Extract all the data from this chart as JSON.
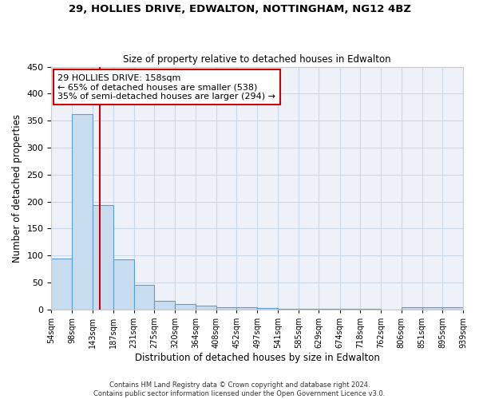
{
  "title1": "29, HOLLIES DRIVE, EDWALTON, NOTTINGHAM, NG12 4BZ",
  "title2": "Size of property relative to detached houses in Edwalton",
  "xlabel": "Distribution of detached houses by size in Edwalton",
  "ylabel": "Number of detached properties",
  "footer1": "Contains HM Land Registry data © Crown copyright and database right 2024.",
  "footer2": "Contains public sector information licensed under the Open Government Licence v3.0.",
  "bin_edges": [
    54,
    98,
    143,
    187,
    231,
    275,
    320,
    364,
    408,
    452,
    497,
    541,
    585,
    629,
    674,
    718,
    762,
    806,
    851,
    895,
    939
  ],
  "bar_heights": [
    95,
    362,
    193,
    93,
    45,
    16,
    10,
    7,
    5,
    5,
    3,
    2,
    1,
    2,
    1,
    1,
    0,
    5,
    4,
    5
  ],
  "bar_color": "#c8dcf0",
  "bar_edgecolor": "#5a9fd4",
  "grid_color": "#c8d8e8",
  "annotation_text": "29 HOLLIES DRIVE: 158sqm\n← 65% of detached houses are smaller (538)\n35% of semi-detached houses are larger (294) →",
  "vline_x": 158,
  "vline_color": "#cc0000",
  "annotation_box_color": "#cc0000",
  "annotation_fontsize": 8,
  "bg_color": "#eef2f8",
  "ylim": [
    0,
    450
  ],
  "yticks": [
    0,
    50,
    100,
    150,
    200,
    250,
    300,
    350,
    400,
    450
  ]
}
